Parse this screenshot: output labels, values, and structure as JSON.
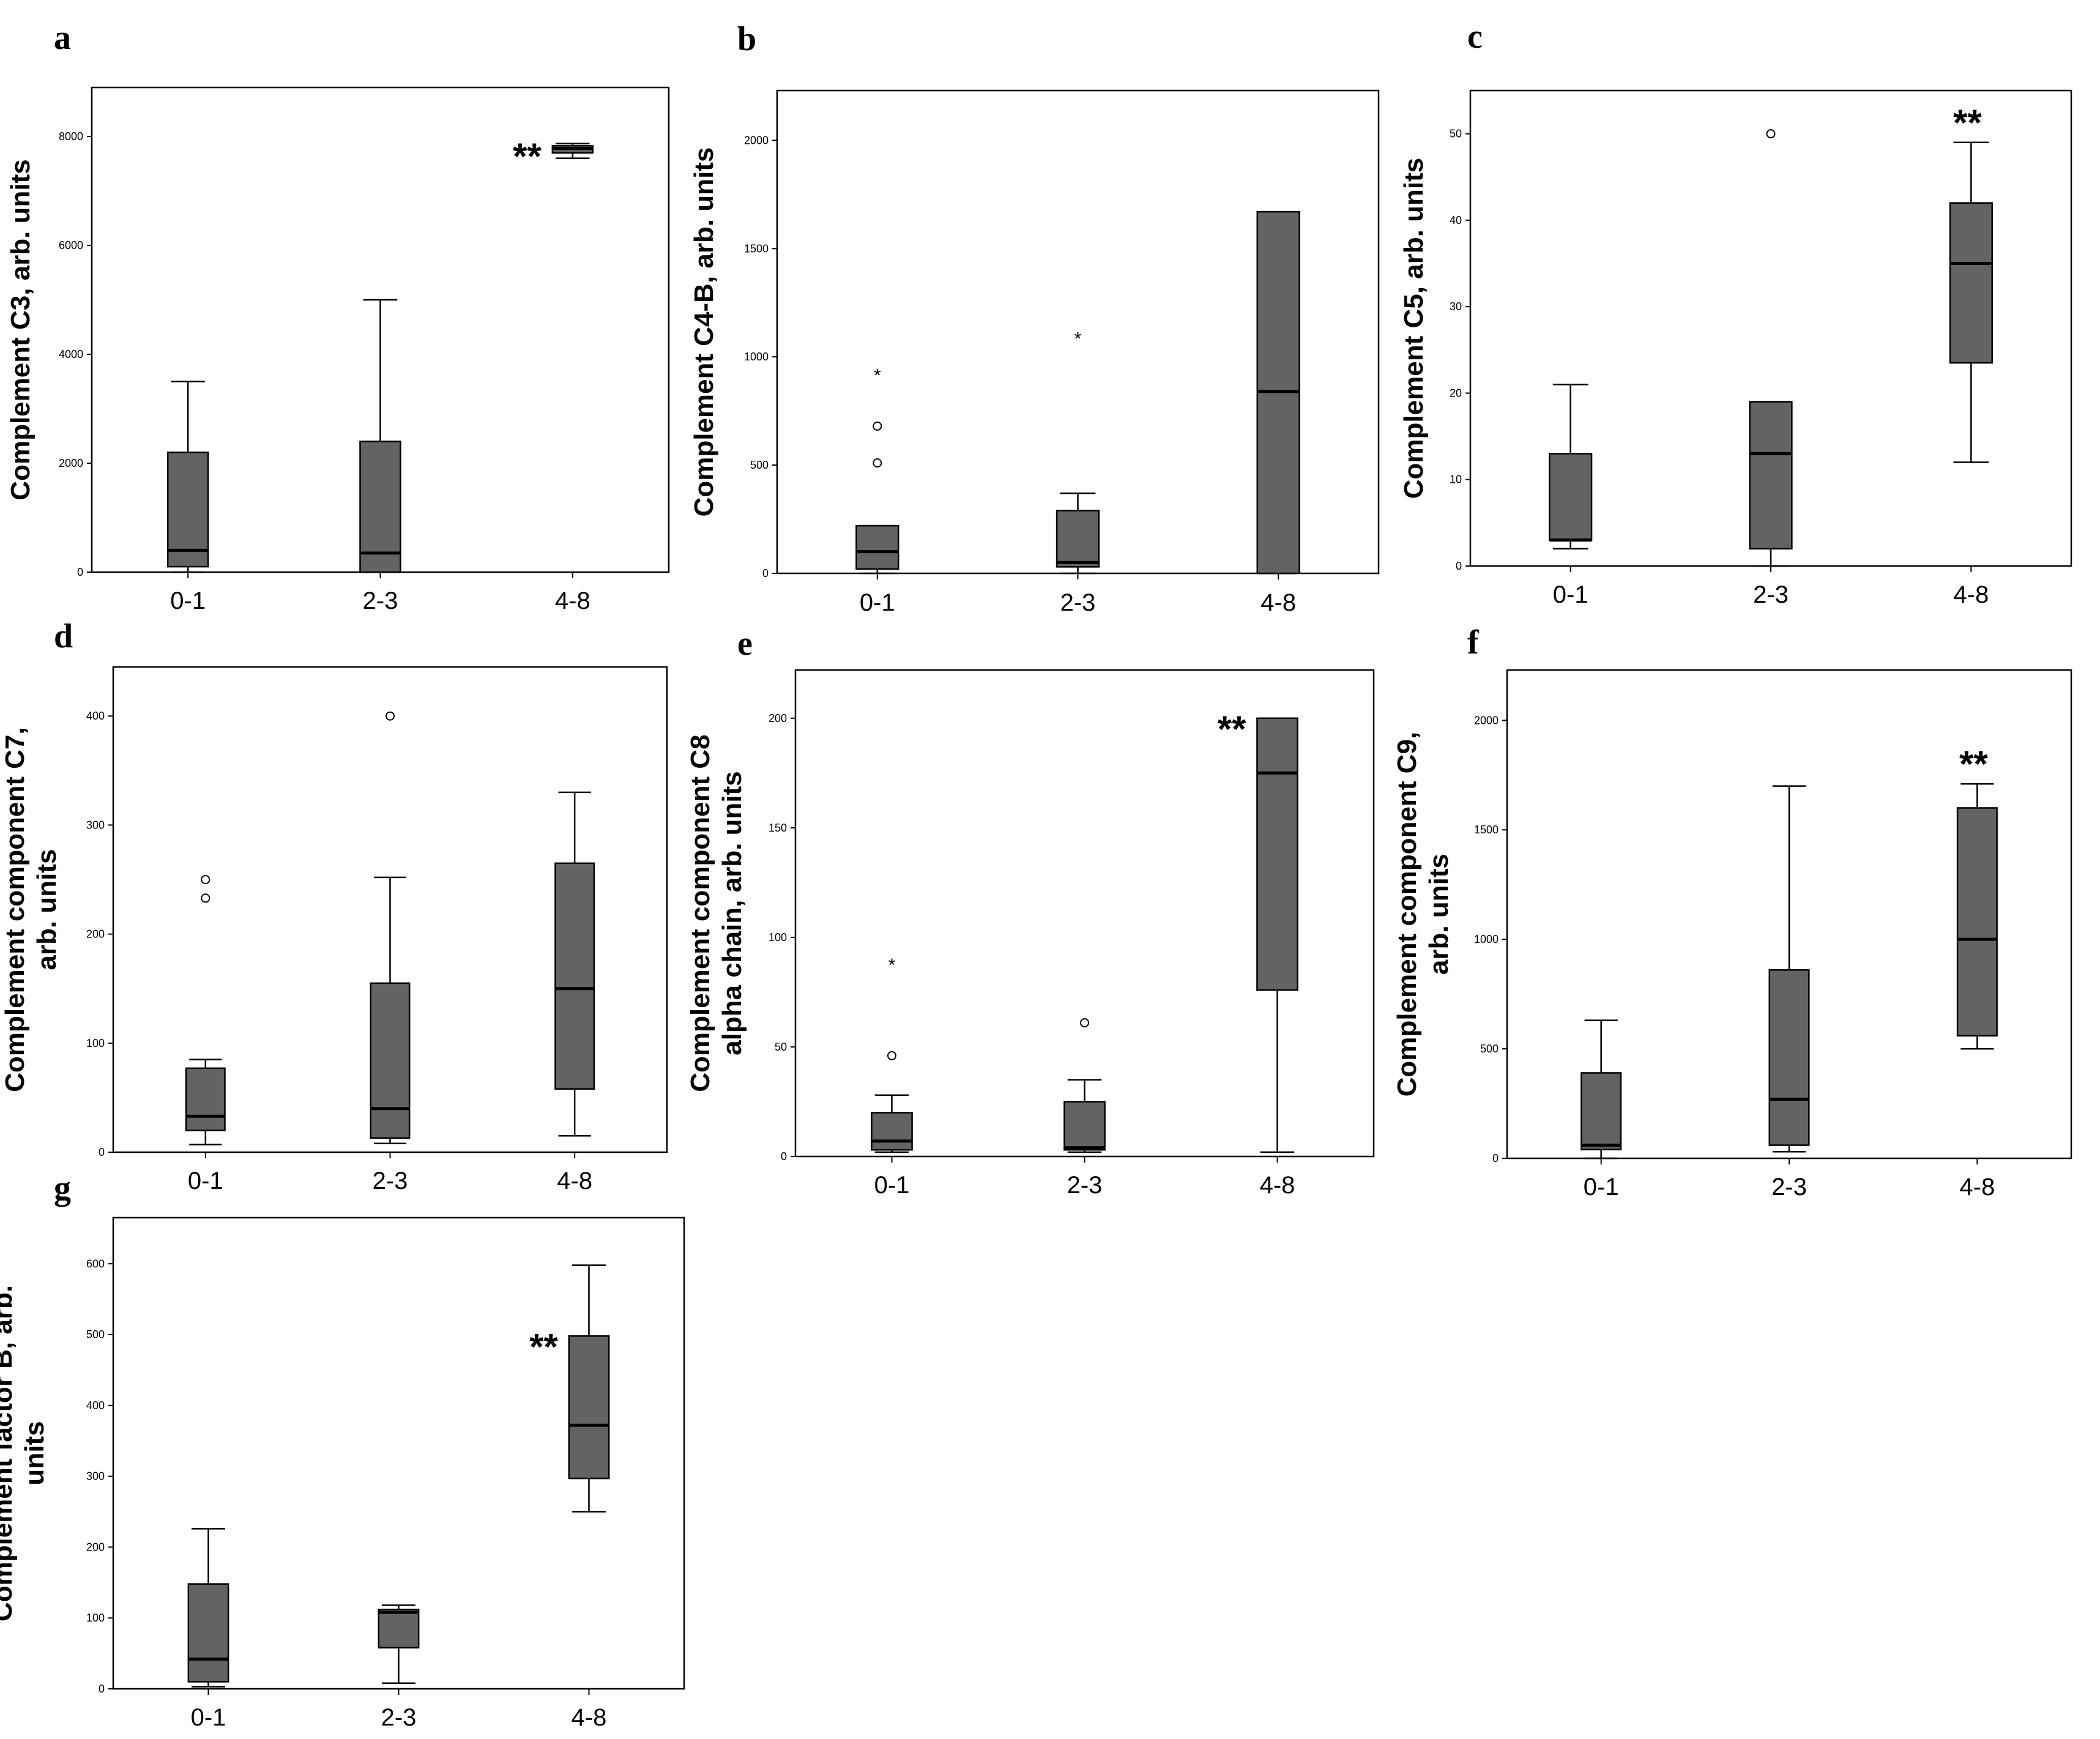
{
  "chart_data": [
    {
      "panel": "a",
      "type": "box",
      "ylabel": [
        "Complement C3, arb. units"
      ],
      "categories": [
        "0-1",
        "2-3",
        "4-8"
      ],
      "ylim": [
        0,
        8900
      ],
      "yticks": [
        0,
        2000,
        4000,
        6000,
        8000
      ],
      "yticklabels": [
        "0",
        "2000",
        "4000",
        "6000",
        "8000"
      ],
      "boxes": [
        {
          "min": 0,
          "q1": 100,
          "median": 400,
          "q3": 2200,
          "max": 3500
        },
        {
          "min": 0,
          "q1": 0,
          "median": 350,
          "q3": 2400,
          "max": 5000
        },
        {
          "min": 7600,
          "q1": 7700,
          "median": 7780,
          "q3": 7830,
          "max": 7870
        }
      ],
      "outliers": [],
      "significance": [
        {
          "category": "4-8",
          "label": "**",
          "side": "left"
        }
      ]
    },
    {
      "panel": "b",
      "type": "box",
      "ylabel": [
        "Complement C4-B, arb. units"
      ],
      "categories": [
        "0-1",
        "2-3",
        "4-8"
      ],
      "ylim": [
        0,
        2230
      ],
      "yticks": [
        0,
        500,
        1000,
        1500,
        2000
      ],
      "yticklabels": [
        "0",
        "500",
        "1000",
        "1500",
        "2000"
      ],
      "boxes": [
        {
          "min": 0,
          "q1": 20,
          "median": 100,
          "q3": 220,
          "max": 220
        },
        {
          "min": 0,
          "q1": 30,
          "median": 50,
          "q3": 290,
          "max": 370
        },
        {
          "min": 0,
          "q1": 0,
          "median": 840,
          "q3": 1670,
          "max": 1670
        }
      ],
      "outliers": [
        {
          "category": "0-1",
          "value": 920,
          "marker": "star"
        },
        {
          "category": "0-1",
          "value": 680,
          "marker": "circle"
        },
        {
          "category": "0-1",
          "value": 510,
          "marker": "circle"
        },
        {
          "category": "2-3",
          "value": 1090,
          "marker": "star"
        }
      ],
      "significance": []
    },
    {
      "panel": "c",
      "type": "box",
      "ylabel": [
        "Complement C5, arb. units"
      ],
      "categories": [
        "0-1",
        "2-3",
        "4-8"
      ],
      "ylim": [
        0,
        55
      ],
      "yticks": [
        0,
        10,
        20,
        30,
        40,
        50
      ],
      "yticklabels": [
        "0",
        "10",
        "20",
        "30",
        "40",
        "50"
      ],
      "boxes": [
        {
          "min": 2,
          "q1": 3,
          "median": 3,
          "q3": 13,
          "max": 21
        },
        {
          "min": 0,
          "q1": 2,
          "median": 13,
          "q3": 19,
          "max": 19
        },
        {
          "min": 12,
          "q1": 23.5,
          "median": 35,
          "q3": 42,
          "max": 49
        }
      ],
      "outliers": [
        {
          "category": "2-3",
          "value": 50,
          "marker": "circle"
        }
      ],
      "significance": [
        {
          "category": "4-8",
          "label": "**",
          "side": "top"
        }
      ]
    },
    {
      "panel": "d",
      "type": "box",
      "ylabel": [
        "Complement component C7,",
        "arb. units"
      ],
      "categories": [
        "0-1",
        "2-3",
        "4-8"
      ],
      "ylim": [
        0,
        445
      ],
      "yticks": [
        0,
        100,
        200,
        300,
        400
      ],
      "yticklabels": [
        "0",
        "100",
        "200",
        "300",
        "400"
      ],
      "boxes": [
        {
          "min": 7,
          "q1": 20,
          "median": 33,
          "q3": 77,
          "max": 85
        },
        {
          "min": 8,
          "q1": 13,
          "median": 40,
          "q3": 155,
          "max": 252
        },
        {
          "min": 15,
          "q1": 58,
          "median": 150,
          "q3": 265,
          "max": 330
        }
      ],
      "outliers": [
        {
          "category": "0-1",
          "value": 250,
          "marker": "circle"
        },
        {
          "category": "0-1",
          "value": 233,
          "marker": "circle"
        },
        {
          "category": "2-3",
          "value": 400,
          "marker": "circle"
        }
      ],
      "significance": []
    },
    {
      "panel": "e",
      "type": "box",
      "ylabel": [
        "Complement component C8",
        "alpha chain, arb. units"
      ],
      "categories": [
        "0-1",
        "2-3",
        "4-8"
      ],
      "ylim": [
        0,
        222
      ],
      "yticks": [
        0,
        50,
        100,
        150,
        200
      ],
      "yticklabels": [
        "0",
        "50",
        "100",
        "150",
        "200"
      ],
      "boxes": [
        {
          "min": 2,
          "q1": 3,
          "median": 7,
          "q3": 20,
          "max": 28
        },
        {
          "min": 2,
          "q1": 3,
          "median": 4,
          "q3": 25,
          "max": 35
        },
        {
          "min": 2,
          "q1": 76,
          "median": 175,
          "q3": 200,
          "max": 200
        }
      ],
      "outliers": [
        {
          "category": "0-1",
          "value": 88,
          "marker": "star"
        },
        {
          "category": "0-1",
          "value": 46,
          "marker": "circle"
        },
        {
          "category": "2-3",
          "value": 61,
          "marker": "circle"
        }
      ],
      "significance": [
        {
          "category": "4-8",
          "label": "**",
          "side": "left"
        }
      ]
    },
    {
      "panel": "f",
      "type": "box",
      "ylabel": [
        "Complement component C9,",
        "arb. units"
      ],
      "categories": [
        "0-1",
        "2-3",
        "4-8"
      ],
      "ylim": [
        0,
        2230
      ],
      "yticks": [
        0,
        500,
        1000,
        1500,
        2000
      ],
      "yticklabels": [
        "0",
        "500",
        "1000",
        "1500",
        "2000"
      ],
      "boxes": [
        {
          "min": 0,
          "q1": 40,
          "median": 60,
          "q3": 390,
          "max": 630
        },
        {
          "min": 30,
          "q1": 60,
          "median": 270,
          "q3": 860,
          "max": 1700
        },
        {
          "min": 500,
          "q1": 560,
          "median": 1000,
          "q3": 1600,
          "max": 1710
        }
      ],
      "outliers": [],
      "significance": [
        {
          "category": "4-8",
          "label": "**",
          "side": "top"
        }
      ]
    },
    {
      "panel": "g",
      "type": "box",
      "ylabel": [
        "Complement factor B,  arb.",
        "units"
      ],
      "categories": [
        "0-1",
        "2-3",
        "4-8"
      ],
      "ylim": [
        0,
        665
      ],
      "yticks": [
        0,
        100,
        200,
        300,
        400,
        500,
        600
      ],
      "yticklabels": [
        "0",
        "100",
        "200",
        "300",
        "400",
        "500",
        "600"
      ],
      "boxes": [
        {
          "min": 3,
          "q1": 10,
          "median": 42,
          "q3": 148,
          "max": 226
        },
        {
          "min": 8,
          "q1": 58,
          "median": 108,
          "q3": 112,
          "max": 118
        },
        {
          "min": 250,
          "q1": 297,
          "median": 372,
          "q3": 498,
          "max": 598
        }
      ],
      "outliers": [],
      "significance": [
        {
          "category": "4-8",
          "label": "**",
          "side": "left"
        }
      ]
    }
  ]
}
